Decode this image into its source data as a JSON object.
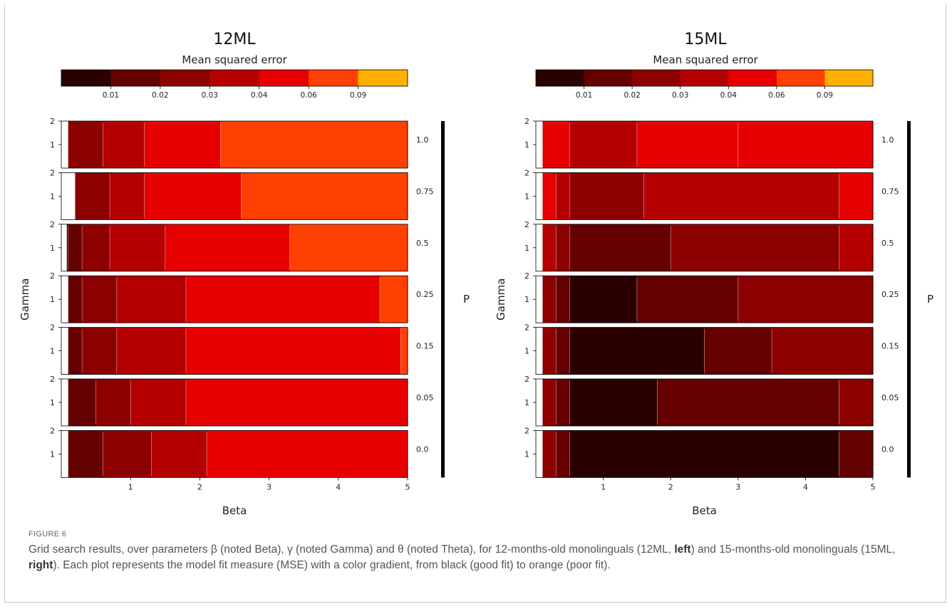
{
  "colors": {
    "levels": [
      "#2b0000",
      "#640000",
      "#8c0000",
      "#b40000",
      "#e60000",
      "#ff4000",
      "#ffb000"
    ],
    "contour_line": "#f0c8c0",
    "p_bar": "#000000"
  },
  "chart_data": [
    {
      "type": "heatmap",
      "title": "12ML",
      "colorbar_label": "Mean squared error",
      "colorbar_ticks": [
        "0.01",
        "0.02",
        "0.03",
        "0.04",
        "0.06",
        "0.09"
      ],
      "colorbar_levels": [
        0.0,
        0.01,
        0.02,
        0.03,
        0.04,
        0.06,
        0.09,
        0.12
      ],
      "xlabel": "Beta",
      "ylabel": "Gamma",
      "facet_label": "P",
      "xlim": [
        0,
        5
      ],
      "ylim": [
        0,
        2
      ],
      "xticks": [
        "1",
        "2",
        "3",
        "4",
        "5"
      ],
      "yticks": [
        "1",
        "2"
      ],
      "panels": [
        {
          "p": "1.0",
          "boundaries": [
            [
              0.02,
              0.1
            ],
            [
              0.035,
              0.6
            ],
            [
              0.05,
              1.2
            ],
            [
              0.075,
              2.3
            ]
          ]
        },
        {
          "p": "0.75",
          "boundaries": [
            [
              0.02,
              0.2
            ],
            [
              0.035,
              0.7
            ],
            [
              0.05,
              1.2
            ],
            [
              0.075,
              2.6
            ]
          ]
        },
        {
          "p": "0.5",
          "boundaries": [
            [
              0.005,
              0.08
            ],
            [
              0.015,
              0.1
            ],
            [
              0.025,
              0.3
            ],
            [
              0.035,
              0.7
            ],
            [
              0.05,
              1.5
            ],
            [
              0.075,
              3.3
            ]
          ]
        },
        {
          "p": "0.25",
          "boundaries": [
            [
              0.015,
              0.1
            ],
            [
              0.025,
              0.3
            ],
            [
              0.035,
              0.8
            ],
            [
              0.05,
              1.8
            ],
            [
              0.075,
              4.6
            ]
          ]
        },
        {
          "p": "0.15",
          "boundaries": [
            [
              0.015,
              0.1
            ],
            [
              0.025,
              0.3
            ],
            [
              0.035,
              0.8
            ],
            [
              0.05,
              1.8
            ],
            [
              0.075,
              4.9
            ]
          ]
        },
        {
          "p": "0.05",
          "boundaries": [
            [
              0.015,
              0.1
            ],
            [
              0.025,
              0.5
            ],
            [
              0.035,
              1.0
            ],
            [
              0.05,
              1.8
            ]
          ]
        },
        {
          "p": "0.0",
          "boundaries": [
            [
              0.015,
              0.1
            ],
            [
              0.025,
              0.6
            ],
            [
              0.035,
              1.3
            ],
            [
              0.05,
              2.1
            ]
          ]
        }
      ]
    },
    {
      "type": "heatmap",
      "title": "15ML",
      "colorbar_label": "Mean squared error",
      "colorbar_ticks": [
        "0.01",
        "0.02",
        "0.03",
        "0.04",
        "0.06",
        "0.09"
      ],
      "colorbar_levels": [
        0.0,
        0.01,
        0.02,
        0.03,
        0.04,
        0.06,
        0.09,
        0.12
      ],
      "xlabel": "Beta",
      "ylabel": "Gamma",
      "facet_label": "P",
      "xlim": [
        0,
        5
      ],
      "ylim": [
        0,
        2
      ],
      "xticks": [
        "1",
        "2",
        "3",
        "4",
        "5"
      ],
      "yticks": [
        "1",
        "2"
      ],
      "panels": [
        {
          "p": "1.0",
          "boundaries": [
            [
              0.05,
              0.1
            ],
            [
              0.035,
              0.5
            ],
            [
              0.05,
              1.5
            ],
            [
              0.05,
              3.0
            ]
          ]
        },
        {
          "p": "0.75",
          "boundaries": [
            [
              0.05,
              0.1
            ],
            [
              0.035,
              0.3
            ],
            [
              0.025,
              0.5
            ],
            [
              0.035,
              1.6
            ],
            [
              0.05,
              4.5
            ]
          ]
        },
        {
          "p": "0.5",
          "boundaries": [
            [
              0.035,
              0.1
            ],
            [
              0.025,
              0.3
            ],
            [
              0.015,
              0.5
            ],
            [
              0.025,
              2.0
            ],
            [
              0.035,
              4.5
            ]
          ]
        },
        {
          "p": "0.25",
          "boundaries": [
            [
              0.025,
              0.1
            ],
            [
              0.015,
              0.3
            ],
            [
              0.005,
              0.5
            ],
            [
              0.015,
              1.5
            ],
            [
              0.025,
              3.0
            ]
          ]
        },
        {
          "p": "0.15",
          "boundaries": [
            [
              0.025,
              0.1
            ],
            [
              0.015,
              0.3
            ],
            [
              0.005,
              0.5
            ],
            [
              0.015,
              2.5
            ],
            [
              0.025,
              3.5
            ]
          ]
        },
        {
          "p": "0.05",
          "boundaries": [
            [
              0.025,
              0.1
            ],
            [
              0.015,
              0.3
            ],
            [
              0.005,
              0.5
            ],
            [
              0.015,
              1.8
            ],
            [
              0.025,
              4.5
            ]
          ]
        },
        {
          "p": "0.0",
          "boundaries": [
            [
              0.025,
              0.1
            ],
            [
              0.015,
              0.3
            ],
            [
              0.005,
              0.5
            ],
            [
              0.015,
              4.5
            ]
          ]
        }
      ]
    }
  ],
  "caption": {
    "label": "FIGURE 6",
    "text_before_left": "Grid search results, over parameters β (noted Beta), γ (noted Gamma) and θ (noted Theta), for 12-months-old monolinguals (12ML, ",
    "left_word": "left",
    "text_between": ") and 15-months-old monolinguals (15ML, ",
    "right_word": "right",
    "text_after_right": "). Each plot represents the model fit measure (MSE) with a color gradient, from black (good fit) to orange (poor fit)."
  }
}
